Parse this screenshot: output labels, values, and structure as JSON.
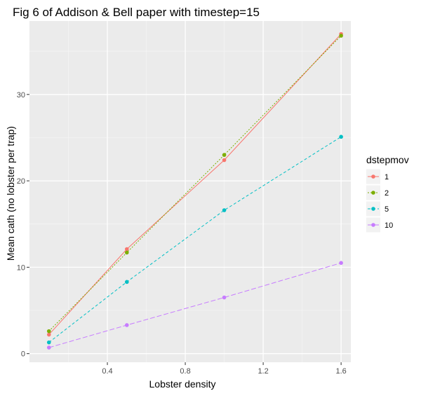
{
  "chart_data": {
    "type": "line",
    "title": "Fig 6 of Addison & Bell paper with timestep=15",
    "xlabel": "Lobster density",
    "ylabel": "Mean cath (no lobster per trap)",
    "xlim": [
      0.0,
      1.65
    ],
    "ylim": [
      -1.0,
      38.5
    ],
    "x_ticks": [
      0.4,
      0.8,
      1.2,
      1.6
    ],
    "x_tick_labels": [
      "0.4",
      "0.8",
      "1.2",
      "1.6"
    ],
    "y_ticks": [
      0,
      10,
      20,
      30
    ],
    "y_tick_labels": [
      "0",
      "10",
      "20",
      "30"
    ],
    "grid": true,
    "legend": {
      "title": "dstepmov",
      "placement": "right"
    },
    "x": [
      0.1,
      0.5,
      1.0,
      1.6
    ],
    "series": [
      {
        "name": "1",
        "values": [
          2.2,
          12.1,
          22.4,
          37.0
        ],
        "color": "#F8766D",
        "dash": "solid"
      },
      {
        "name": "2",
        "values": [
          2.6,
          11.7,
          23.0,
          36.8
        ],
        "color": "#7CAE00",
        "dash": "dotted"
      },
      {
        "name": "5",
        "values": [
          1.3,
          8.3,
          16.6,
          25.1
        ],
        "color": "#00BFC4",
        "dash": "dashed"
      },
      {
        "name": "10",
        "values": [
          0.7,
          3.3,
          6.5,
          10.5
        ],
        "color": "#C77CFF",
        "dash": "longdash"
      }
    ]
  }
}
